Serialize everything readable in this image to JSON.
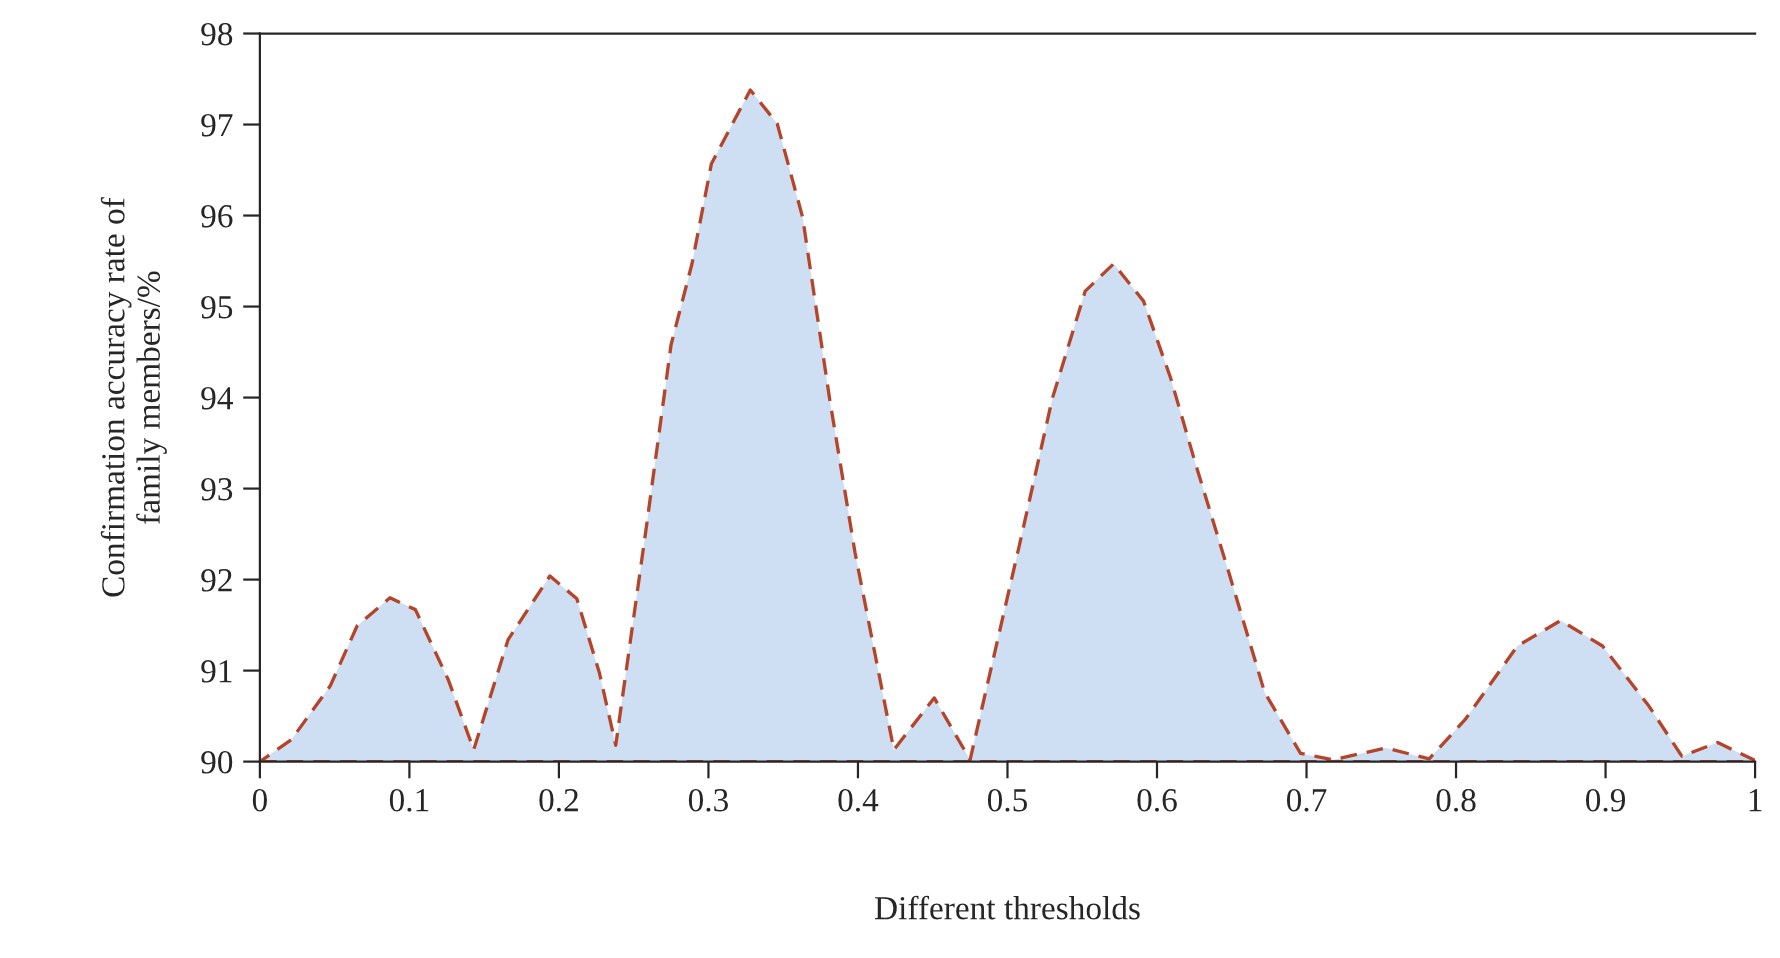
{
  "chart_data": {
    "type": "area",
    "xlabel": "Different thresholds",
    "ylabel": "Confirmation accuracy rate of\nfamily members/%",
    "x": [
      0,
      0.021,
      0.047,
      0.065,
      0.087,
      0.104,
      0.126,
      0.143,
      0.166,
      0.194,
      0.212,
      0.227,
      0.238,
      0.258,
      0.275,
      0.289,
      0.302,
      0.328,
      0.346,
      0.363,
      0.381,
      0.398,
      0.424,
      0.451,
      0.475,
      0.508,
      0.53,
      0.552,
      0.571,
      0.591,
      0.609,
      0.626,
      0.648,
      0.672,
      0.696,
      0.718,
      0.753,
      0.782,
      0.806,
      0.841,
      0.87,
      0.898,
      0.929,
      0.951,
      0.975,
      0.999
    ],
    "series": [
      {
        "color": "#cfdff3",
        "values": [
          90,
          90.24,
          90.83,
          91.49,
          91.8,
          91.67,
          90.9,
          90.13,
          91.34,
          92.04,
          91.79,
          90.98,
          90.18,
          92.52,
          94.58,
          95.47,
          96.57,
          97.38,
          97.01,
          95.98,
          93.99,
          92.3,
          90.13,
          90.7,
          90.02,
          92.38,
          93.99,
          95.17,
          95.47,
          95.06,
          94.22,
          93.26,
          92.08,
          90.76,
          90.09,
          90.02,
          90.15,
          90.03,
          90.46,
          91.27,
          91.55,
          91.27,
          90.61,
          90.06,
          90.21,
          90.02
        ]
      }
    ],
    "line_style": "dashed",
    "grid": false,
    "legend": false,
    "xlim": [
      0,
      1
    ],
    "ylim": [
      90,
      98
    ],
    "xticks": [
      0,
      0.1,
      0.2,
      0.3,
      0.4,
      0.5,
      0.6,
      0.7,
      0.8,
      0.9,
      1
    ],
    "yticks": [
      90,
      91,
      92,
      93,
      94,
      95,
      96,
      97,
      98
    ]
  }
}
